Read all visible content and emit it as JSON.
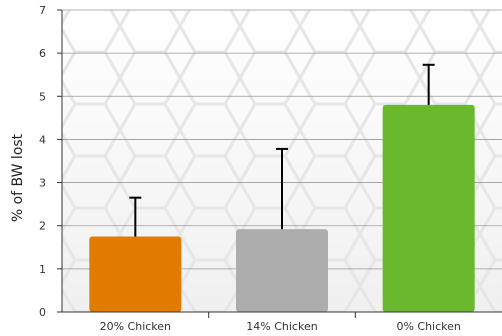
{
  "chart_data": {
    "type": "bar",
    "categories": [
      "20% Chicken",
      "14% Chicken",
      "0% Chicken"
    ],
    "values": [
      1.75,
      1.92,
      4.8
    ],
    "error_upper": [
      2.65,
      3.78,
      5.73
    ],
    "ylabel": "% of BW lost",
    "xlabel": "",
    "ylim": [
      0,
      7
    ],
    "yticks": [
      0,
      1,
      2,
      3,
      4,
      5,
      6,
      7
    ],
    "colors": [
      "#e07b00",
      "#adadad",
      "#6ab82e"
    ],
    "grid": true,
    "legend": "none"
  }
}
